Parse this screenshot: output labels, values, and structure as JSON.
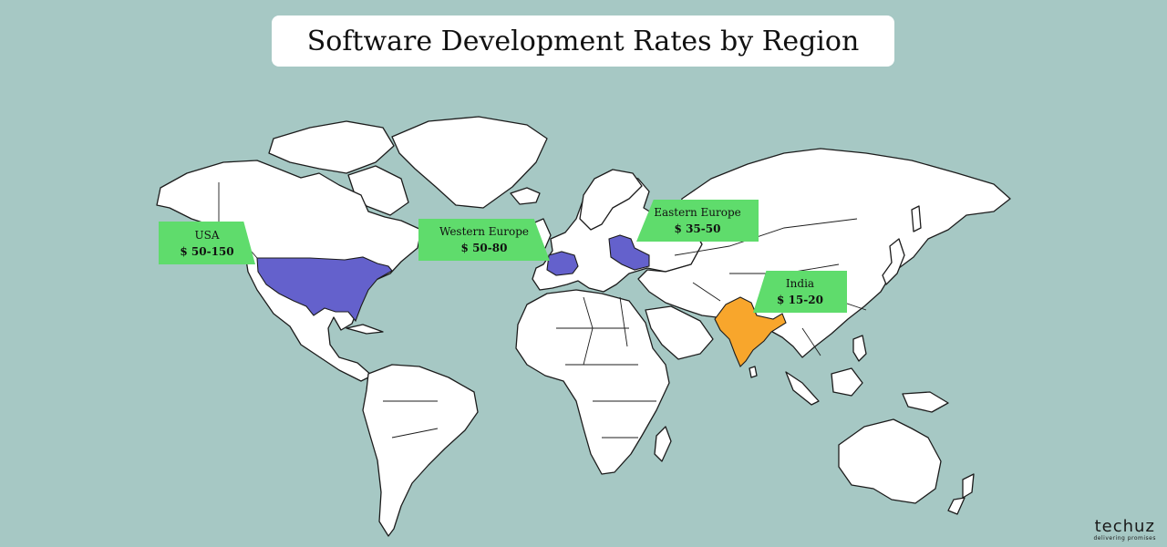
{
  "title": "Software Development Rates by Region",
  "regions": [
    {
      "name": "USA",
      "rate": "$ 50-150",
      "highlight_color": "#6461cc"
    },
    {
      "name": "Western Europe",
      "rate": "$ 50-80",
      "highlight_color": "#6461cc"
    },
    {
      "name": "Eastern Europe",
      "rate": "$ 35-50",
      "highlight_color": "#6461cc"
    },
    {
      "name": "India",
      "rate": "$ 15-20",
      "highlight_color": "#f8a62c"
    }
  ],
  "colors": {
    "ocean": "#a6c8c4",
    "land": "#ffffff",
    "callout": "#5fdc6c"
  },
  "brand": {
    "name": "techuz",
    "tagline": "delivering promises"
  }
}
